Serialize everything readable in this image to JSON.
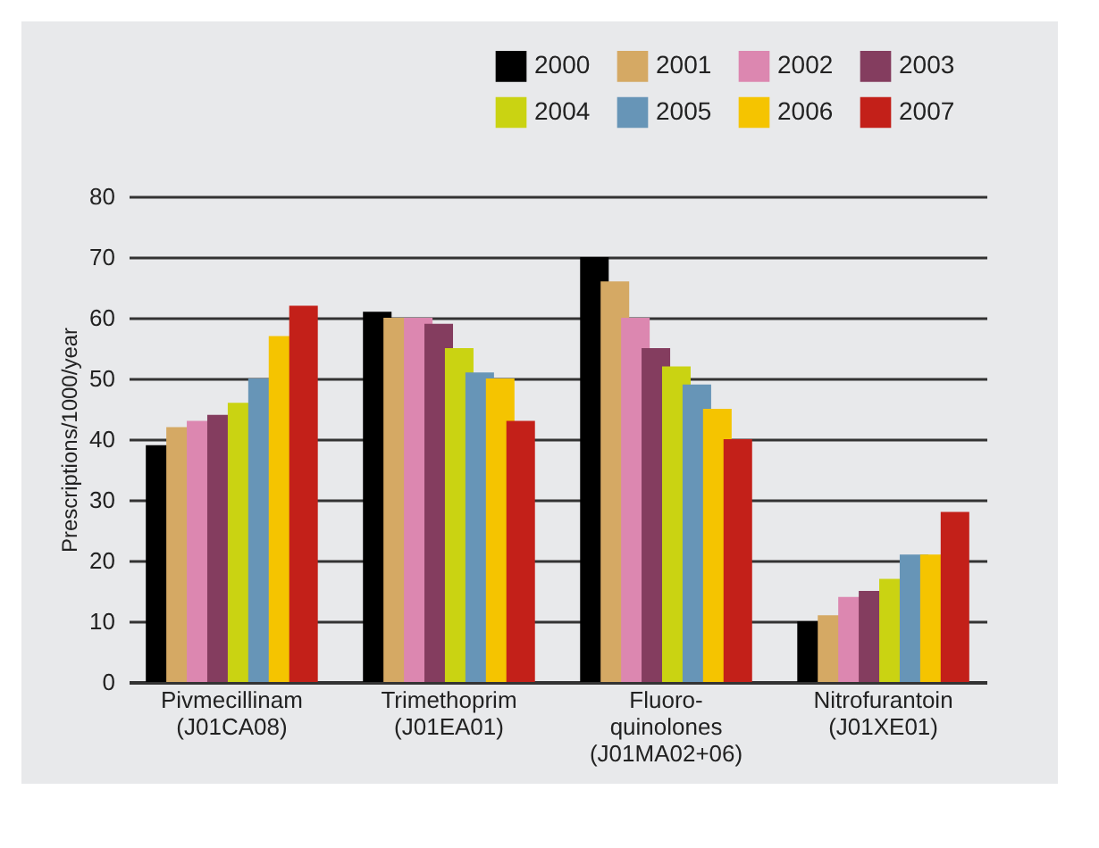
{
  "chart_data": {
    "type": "bar",
    "ylabel": "Prescriptions/1000/year",
    "categories": [
      "Pivmecillinam\n(J01CA08)",
      "Trimethoprim\n(J01EA01)",
      "Fluoro-\nquinolones\n(J01MA02+06)",
      "Nitrofurantoin\n(J01XE01)"
    ],
    "series": [
      {
        "name": "2000",
        "color": "#000000",
        "values": [
          39,
          61,
          70,
          10
        ]
      },
      {
        "name": "2001",
        "color": "#d5a964",
        "values": [
          42,
          60,
          66,
          11
        ]
      },
      {
        "name": "2002",
        "color": "#dc87b0",
        "values": [
          43,
          60,
          60,
          14
        ]
      },
      {
        "name": "2003",
        "color": "#843d5f",
        "values": [
          44,
          59,
          55,
          15
        ]
      },
      {
        "name": "2004",
        "color": "#cad312",
        "values": [
          46,
          55,
          52,
          17
        ]
      },
      {
        "name": "2005",
        "color": "#6795b7",
        "values": [
          50,
          51,
          49,
          21
        ]
      },
      {
        "name": "2006",
        "color": "#f5c400",
        "values": [
          57,
          50,
          45,
          21
        ]
      },
      {
        "name": "2007",
        "color": "#c32019",
        "values": [
          62,
          43,
          40,
          28
        ]
      }
    ],
    "ylim": [
      0,
      80
    ],
    "yticks": [
      0,
      10,
      20,
      30,
      40,
      50,
      60,
      70,
      80
    ],
    "grid": "y",
    "legend": "top right"
  }
}
